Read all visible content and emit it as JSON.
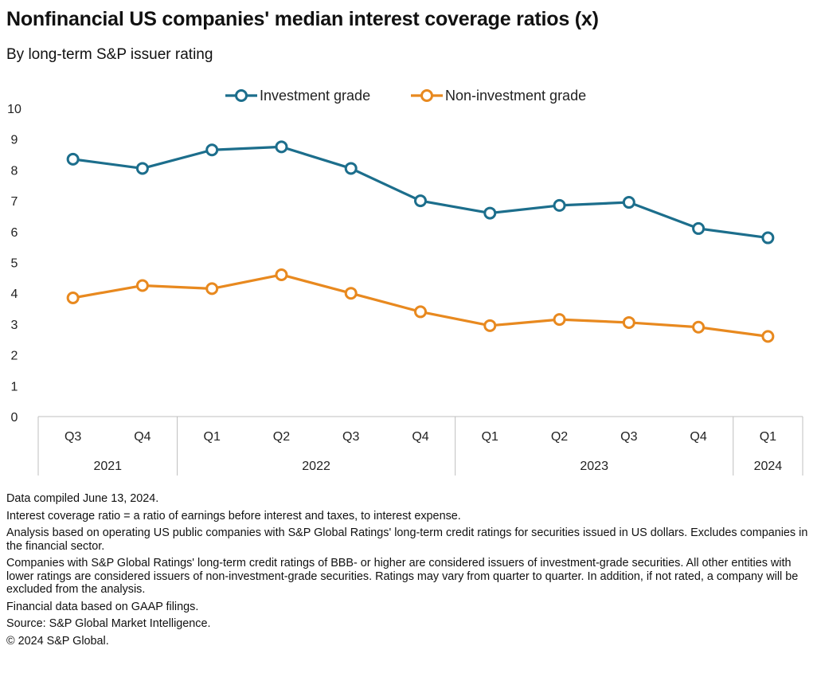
{
  "header": {
    "title": "Nonfinancial US companies' median interest coverage ratios (x)",
    "subtitle": "By long-term S&P issuer rating"
  },
  "chart_data": {
    "type": "line",
    "title": "Nonfinancial US companies' median interest coverage ratios (x)",
    "subtitle": "By long-term S&P issuer rating",
    "xlabel": "",
    "ylabel": "",
    "ylim": [
      0,
      10
    ],
    "yticks": [
      "0",
      "1",
      "2",
      "3",
      "4",
      "5",
      "6",
      "7",
      "8",
      "9",
      "10"
    ],
    "grid": false,
    "legend_position": "top",
    "categories": [
      "Q3",
      "Q4",
      "Q1",
      "Q2",
      "Q3",
      "Q4",
      "Q1",
      "Q2",
      "Q3",
      "Q4",
      "Q1"
    ],
    "year_groups": [
      {
        "label": "2021",
        "span": 2
      },
      {
        "label": "2022",
        "span": 4
      },
      {
        "label": "2023",
        "span": 4
      },
      {
        "label": "2024",
        "span": 1
      }
    ],
    "series": [
      {
        "name": "Investment grade",
        "color": "#1c6e8c",
        "values": [
          8.35,
          8.05,
          8.65,
          8.75,
          8.05,
          7.0,
          6.6,
          6.85,
          6.95,
          6.1,
          5.8
        ]
      },
      {
        "name": "Non-investment grade",
        "color": "#e8891f",
        "values": [
          3.85,
          4.25,
          4.15,
          4.6,
          4.0,
          3.4,
          2.95,
          3.15,
          3.05,
          2.9,
          2.6
        ]
      }
    ]
  },
  "notes": [
    "Data compiled June 13, 2024.",
    "Interest coverage ratio = a ratio of earnings before interest and taxes, to interest expense.",
    "Analysis based on operating US public companies with S&P Global Ratings' long-term credit ratings for securities issued in US dollars. Excludes companies in the financial sector.",
    "Companies with S&P Global Ratings' long-term credit ratings of BBB- or higher are considered issuers of investment-grade securities. All other entities with lower ratings are considered issuers of non-investment-grade securities. Ratings may vary from quarter to quarter. In addition, if not rated, a company will be excluded from the analysis.",
    "Financial data based on GAAP filings.",
    "Source: S&P Global Market Intelligence.",
    "© 2024 S&P Global."
  ]
}
